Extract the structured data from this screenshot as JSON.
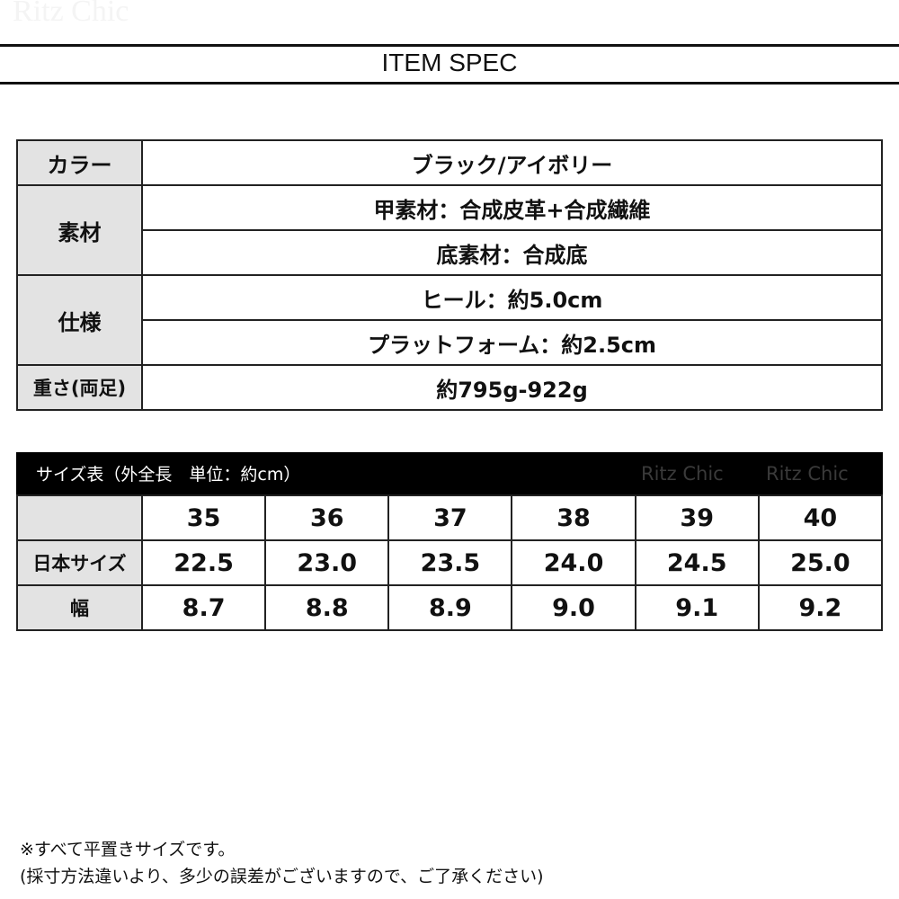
{
  "watermark": "Ritz Chic",
  "title": "ITEM SPEC",
  "spec": {
    "color_label": "カラー",
    "color_value": "ブラック/アイボリー",
    "material_label": "素材",
    "material_upper": "甲素材：合成皮革+合成繊維",
    "material_sole": "底素材：合成底",
    "spec_label": "仕様",
    "heel": "ヒール：約5.0cm",
    "platform": "プラットフォーム：約2.5cm",
    "weight_label": "重さ(両足)",
    "weight_value": "約795g-922g"
  },
  "size_table": {
    "header": "サイズ表（外全長　単位：約cm）",
    "watermarks": [
      "Ritz Chic",
      "Ritz Chic"
    ],
    "sizes": [
      "35",
      "36",
      "37",
      "38",
      "39",
      "40"
    ],
    "jp_label": "日本サイズ",
    "jp": [
      "22.5",
      "23.0",
      "23.5",
      "24.0",
      "24.5",
      "25.0"
    ],
    "width_label": "幅",
    "width": [
      "8.7",
      "8.8",
      "8.9",
      "9.0",
      "9.1",
      "9.2"
    ]
  },
  "notes": [
    "※すべて平置きサイズです。",
    "(採寸方法違いより、多少の誤差がございますので、ご了承ください)"
  ]
}
